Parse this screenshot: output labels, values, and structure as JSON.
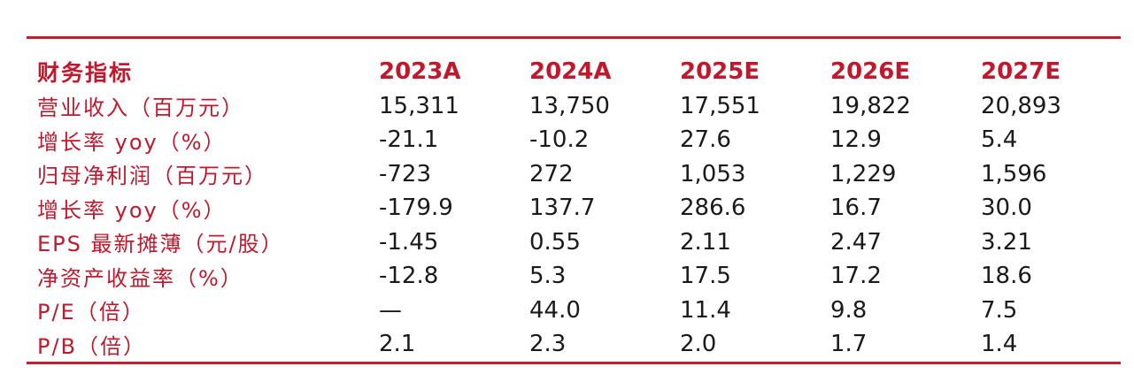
{
  "table": {
    "header": [
      "财务指标",
      "2023A",
      "2024A",
      "2025E",
      "2026E",
      "2027E"
    ],
    "rows": [
      {
        "label": "营业收入（百万元）",
        "values": [
          "15,311",
          "13,750",
          "17,551",
          "19,822",
          "20,893"
        ]
      },
      {
        "label": "增长率 yoy（%）",
        "values": [
          "-21.1",
          "-10.2",
          "27.6",
          "12.9",
          "5.4"
        ]
      },
      {
        "label": "归母净利润（百万元）",
        "values": [
          "-723",
          "272",
          "1,053",
          "1,229",
          "1,596"
        ]
      },
      {
        "label": "增长率 yoy（%）",
        "values": [
          "-179.9",
          "137.7",
          "286.6",
          "16.7",
          "30.0"
        ]
      },
      {
        "label": "EPS 最新摊薄（元/股）",
        "values": [
          "-1.45",
          "0.55",
          "2.11",
          "2.47",
          "3.21"
        ]
      },
      {
        "label": "净资产收益率（%）",
        "values": [
          "-12.8",
          "5.3",
          "17.5",
          "17.2",
          "18.6"
        ]
      },
      {
        "label": "P/E（倍）",
        "values": [
          "—",
          "44.0",
          "11.4",
          "9.8",
          "7.5"
        ]
      },
      {
        "label": "P/B（倍）",
        "values": [
          "2.1",
          "2.3",
          "2.0",
          "1.7",
          "1.4"
        ]
      }
    ]
  },
  "colors": {
    "accent": "#c41e2e"
  }
}
